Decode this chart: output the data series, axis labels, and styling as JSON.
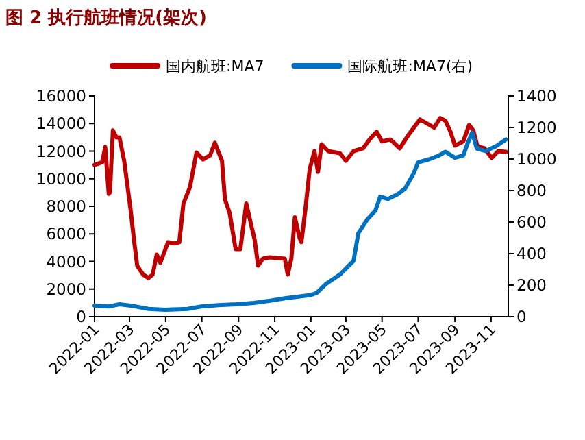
{
  "chart_data": {
    "type": "line",
    "title": "图 2 执行航班情况(架次)",
    "xlim": [
      "2022-01-01",
      "2023-11-30"
    ],
    "xticks": [
      "2022-01",
      "2022-03",
      "2022-05",
      "2022-07",
      "2022-09",
      "2022-11",
      "2023-01",
      "2023-03",
      "2023-05",
      "2023-07",
      "2023-09",
      "2023-11"
    ],
    "ylim": [
      0,
      16000
    ],
    "yticks": [
      0,
      2000,
      4000,
      6000,
      8000,
      10000,
      12000,
      14000,
      16000
    ],
    "y2lim": [
      0,
      1400
    ],
    "y2ticks": [
      0,
      200,
      400,
      600,
      800,
      1000,
      1200,
      1400
    ],
    "legend": "top",
    "line_style": "solid",
    "series": [
      {
        "name": "国内航班:MA7",
        "color": "#c00000",
        "x": [
          "2022-01-01",
          "2022-01-14",
          "2022-01-19",
          "2022-01-25",
          "2022-01-27",
          "2022-02-01",
          "2022-02-07",
          "2022-02-12",
          "2022-02-20",
          "2022-03-03",
          "2022-03-09",
          "2022-03-14",
          "2022-03-24",
          "2022-04-02",
          "2022-04-09",
          "2022-04-16",
          "2022-04-22",
          "2022-05-05",
          "2022-05-16",
          "2022-05-24",
          "2022-05-31",
          "2022-06-11",
          "2022-06-22",
          "2022-07-03",
          "2022-07-15",
          "2022-07-23",
          "2022-08-04",
          "2022-08-09",
          "2022-08-17",
          "2022-08-27",
          "2022-09-04",
          "2022-09-14",
          "2022-09-23",
          "2022-09-28",
          "2022-10-04",
          "2022-10-12",
          "2022-10-23",
          "2022-11-18",
          "2022-11-23",
          "2022-11-29",
          "2022-12-05",
          "2022-12-13",
          "2022-12-16",
          "2022-12-23",
          "2022-12-30",
          "2023-01-07",
          "2023-01-13",
          "2023-01-19",
          "2023-01-30",
          "2023-02-19",
          "2023-03-01",
          "2023-03-14",
          "2023-03-30",
          "2023-04-10",
          "2023-04-22",
          "2023-05-01",
          "2023-05-15",
          "2023-05-31",
          "2023-06-15",
          "2023-07-04",
          "2023-07-20",
          "2023-07-28",
          "2023-08-07",
          "2023-08-16",
          "2023-08-25",
          "2023-09-01",
          "2023-09-15",
          "2023-09-25",
          "2023-10-02",
          "2023-10-09",
          "2023-10-21",
          "2023-11-02",
          "2023-11-13",
          "2023-11-26"
        ],
        "values": [
          11000,
          11200,
          12300,
          8900,
          9000,
          13500,
          13000,
          13000,
          11300,
          7700,
          5400,
          3700,
          3050,
          2800,
          3050,
          4500,
          3900,
          5400,
          5300,
          5400,
          8200,
          9400,
          11900,
          11400,
          11700,
          12600,
          11300,
          8500,
          7500,
          4900,
          4900,
          8200,
          6500,
          5600,
          3700,
          4200,
          4300,
          4200,
          3050,
          4200,
          7200,
          5700,
          5400,
          7900,
          10700,
          12000,
          10500,
          12500,
          12000,
          11850,
          11300,
          12000,
          12200,
          12850,
          13400,
          12700,
          12850,
          12200,
          13200,
          14300,
          13900,
          13700,
          14400,
          14200,
          13350,
          12400,
          12700,
          13900,
          13500,
          12350,
          12200,
          11500,
          12000,
          11950
        ]
      },
      {
        "name": "国际航班:MA7(右)",
        "color": "#0070c0",
        "axis": "y2",
        "x": [
          "2022-01-01",
          "2022-01-25",
          "2022-02-12",
          "2022-03-03",
          "2022-04-02",
          "2022-05-01",
          "2022-06-07",
          "2022-06-30",
          "2022-07-29",
          "2022-08-28",
          "2022-09-27",
          "2022-10-26",
          "2022-11-18",
          "2023-01-01",
          "2023-01-11",
          "2023-01-27",
          "2023-02-19",
          "2023-03-14",
          "2023-03-22",
          "2023-04-06",
          "2023-04-20",
          "2023-04-28",
          "2023-05-11",
          "2023-05-27",
          "2023-06-09",
          "2023-06-23",
          "2023-07-01",
          "2023-07-20",
          "2023-08-05",
          "2023-08-16",
          "2023-09-01",
          "2023-09-15",
          "2023-09-22",
          "2023-09-30",
          "2023-10-08",
          "2023-10-23",
          "2023-11-09",
          "2023-11-26"
        ],
        "values": [
          70,
          64,
          78,
          70,
          49,
          44,
          49,
          64,
          73,
          78,
          87,
          102,
          116,
          137,
          151,
          209,
          267,
          354,
          529,
          616,
          674,
          761,
          746,
          776,
          813,
          906,
          979,
          999,
          1022,
          1046,
          1008,
          1022,
          1095,
          1168,
          1066,
          1051,
          1080,
          1124
        ]
      }
    ]
  }
}
